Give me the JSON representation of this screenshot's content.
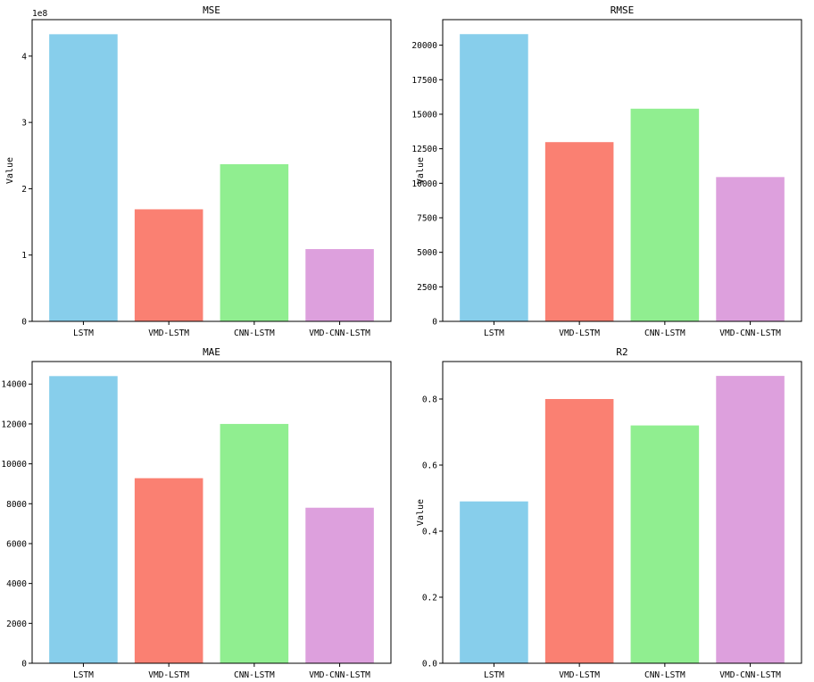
{
  "chart_data": [
    {
      "type": "bar",
      "title": "MSE",
      "ylabel": "Value",
      "offset_text": "1e8",
      "categories": [
        "LSTM",
        "VMD-LSTM",
        "CNN-LSTM",
        "VMD-CNN-LSTM"
      ],
      "values": [
        4.33,
        1.69,
        2.37,
        1.09
      ],
      "ylim": [
        0,
        4.55
      ],
      "yticks": [
        0,
        1,
        2,
        3,
        4
      ],
      "ytick_labels": [
        "0",
        "1",
        "2",
        "3",
        "4"
      ],
      "colors": [
        "#87ceeb",
        "#fa8072",
        "#90ee90",
        "#dda0dd"
      ]
    },
    {
      "type": "bar",
      "title": "RMSE",
      "ylabel": "Value",
      "categories": [
        "LSTM",
        "VMD-LSTM",
        "CNN-LSTM",
        "VMD-CNN-LSTM"
      ],
      "values": [
        20800,
        12980,
        15400,
        10450
      ],
      "ylim": [
        0,
        21850
      ],
      "yticks": [
        0,
        2500,
        5000,
        7500,
        10000,
        12500,
        15000,
        17500,
        20000
      ],
      "ytick_labels": [
        "0",
        "2500",
        "5000",
        "7500",
        "10000",
        "12500",
        "15000",
        "17500",
        "20000"
      ],
      "colors": [
        "#87ceeb",
        "#fa8072",
        "#90ee90",
        "#dda0dd"
      ]
    },
    {
      "type": "bar",
      "title": "MAE",
      "ylabel": "",
      "categories": [
        "LSTM",
        "VMD-LSTM",
        "CNN-LSTM",
        "VMD-CNN-LSTM"
      ],
      "values": [
        14400,
        9280,
        12000,
        7800
      ],
      "ylim": [
        0,
        15130
      ],
      "yticks": [
        0,
        2000,
        4000,
        6000,
        8000,
        10000,
        12000,
        14000
      ],
      "ytick_labels": [
        "0",
        "2000",
        "4000",
        "6000",
        "8000",
        "10000",
        "12000",
        "14000"
      ],
      "colors": [
        "#87ceeb",
        "#fa8072",
        "#90ee90",
        "#dda0dd"
      ]
    },
    {
      "type": "bar",
      "title": "R2",
      "ylabel": "Value",
      "categories": [
        "LSTM",
        "VMD-LSTM",
        "CNN-LSTM",
        "VMD-CNN-LSTM"
      ],
      "values": [
        0.49,
        0.8,
        0.72,
        0.87
      ],
      "ylim": [
        0,
        0.9135
      ],
      "yticks": [
        0,
        0.2,
        0.4,
        0.6,
        0.8
      ],
      "ytick_labels": [
        "0.0",
        "0.2",
        "0.4",
        "0.6",
        "0.8"
      ],
      "colors": [
        "#87ceeb",
        "#fa8072",
        "#90ee90",
        "#dda0dd"
      ]
    }
  ]
}
